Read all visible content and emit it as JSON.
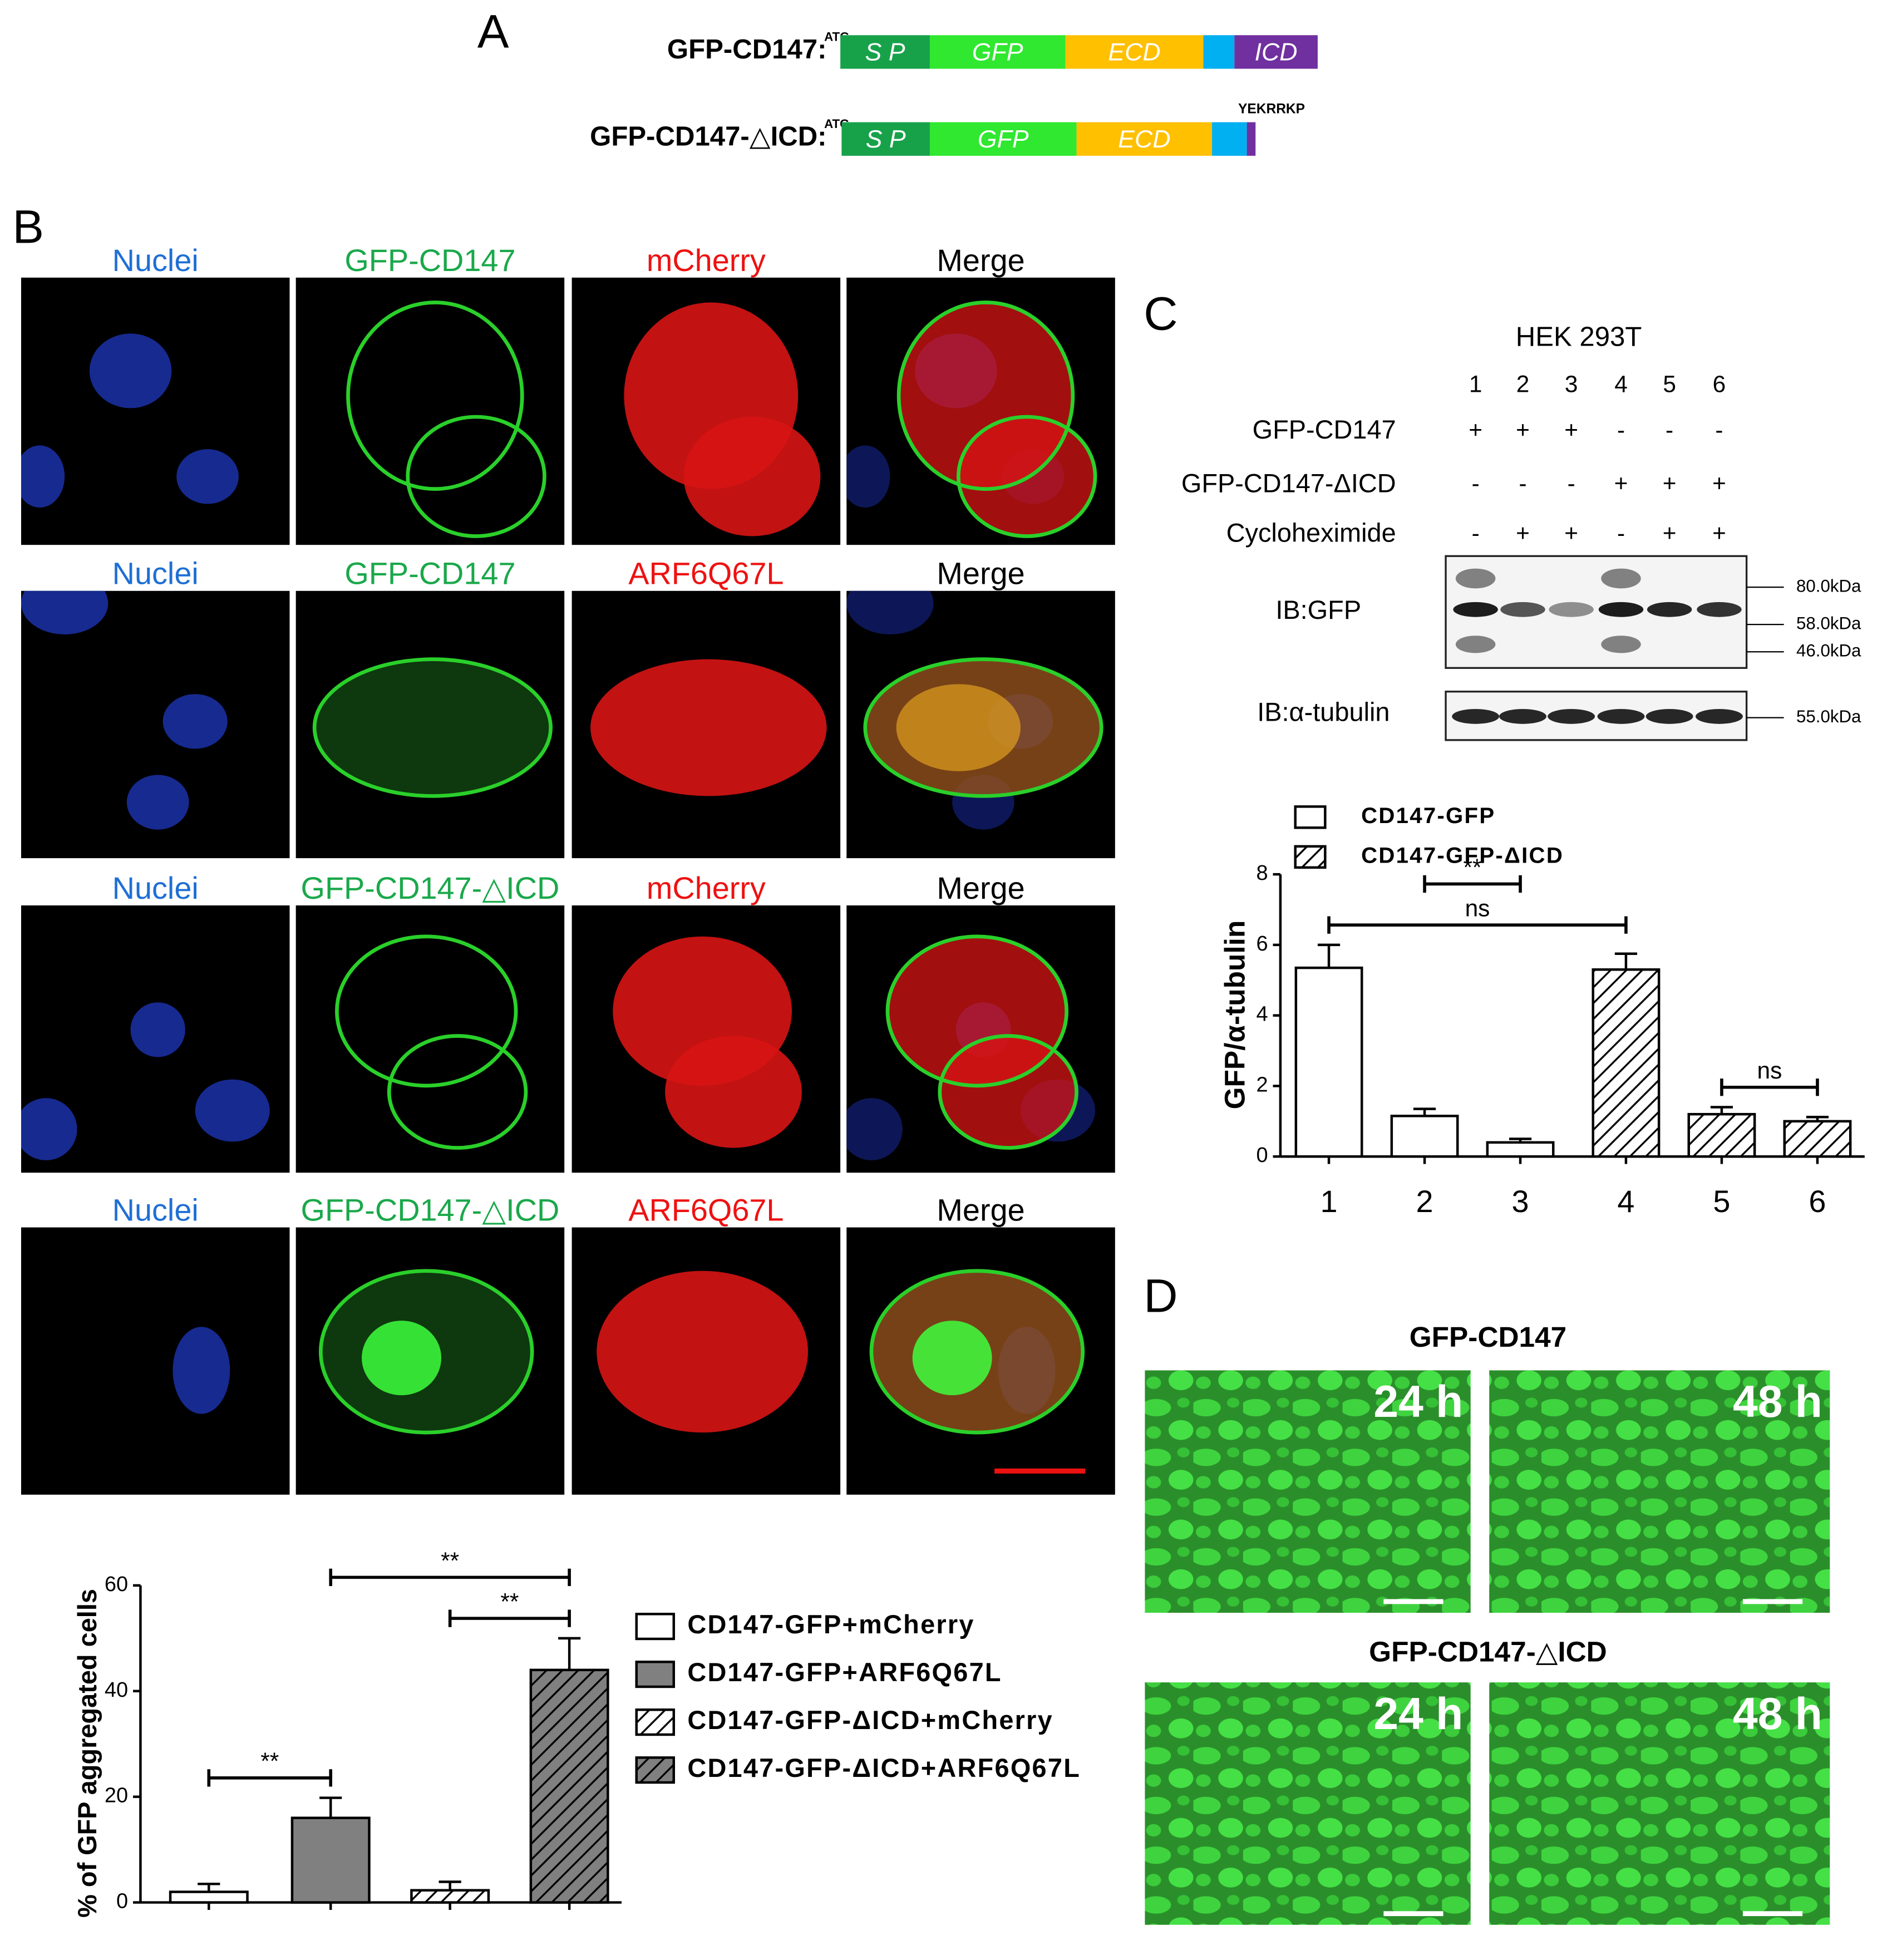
{
  "panel_labels": [
    "A",
    "B",
    "C",
    "D"
  ],
  "constructs": [
    {
      "name": "GFP-CD147:",
      "start": "ATG",
      "domains": [
        "S P",
        "GFP",
        "ECD",
        "ICD"
      ]
    },
    {
      "name": "GFP-CD147-△ICD:",
      "start": "ATG",
      "domains": [
        "S P",
        "GFP",
        "ECD"
      ],
      "tail": "YEKRRKP"
    }
  ],
  "microscopy": {
    "rows": [
      [
        "Nuclei",
        "GFP-CD147",
        "mCherry",
        "Merge"
      ],
      [
        "Nuclei",
        "GFP-CD147",
        "ARF6Q67L",
        "Merge"
      ],
      [
        "Nuclei",
        "GFP-CD147-△ICD",
        "mCherry",
        "Merge"
      ],
      [
        "Nuclei",
        "GFP-CD147-△ICD",
        "ARF6Q67L",
        "Merge"
      ]
    ]
  },
  "blot": {
    "cell_line": "HEK 293T",
    "lanes": [
      "1",
      "2",
      "3",
      "4",
      "5",
      "6"
    ],
    "conditions": [
      {
        "name": "GFP-CD147",
        "signs": [
          "+",
          "+",
          "+",
          "-",
          "-",
          "-"
        ]
      },
      {
        "name": "GFP-CD147-ΔICD",
        "signs": [
          "-",
          "-",
          "-",
          "+",
          "+",
          "+"
        ]
      },
      {
        "name": "Cycloheximide",
        "signs": [
          "-",
          "+",
          "+",
          "-",
          "+",
          "+"
        ]
      }
    ],
    "panels": [
      {
        "label": "IB:GFP",
        "markers": [
          "80.0kDa",
          "58.0kDa",
          "46.0kDa"
        ]
      },
      {
        "label": "IB:α-tubulin",
        "markers": [
          "55.0kDa"
        ]
      }
    ]
  },
  "chart_data": [
    {
      "type": "bar",
      "ylabel": "GFP/α-tubulin",
      "categories": [
        "1",
        "2",
        "3",
        "4",
        "5",
        "6"
      ],
      "series": [
        {
          "name": "CD147-GFP",
          "color": "#ffffff",
          "pattern": "none",
          "values": [
            5.35,
            1.15,
            0.4,
            null,
            null,
            null
          ],
          "errors": [
            0.65,
            0.2,
            0.1,
            null,
            null,
            null
          ]
        },
        {
          "name": "CD147-GFP-ΔICD",
          "color": "#ffffff",
          "pattern": "hatch",
          "values": [
            null,
            null,
            null,
            5.3,
            1.2,
            1.0
          ],
          "errors": [
            null,
            null,
            null,
            0.45,
            0.2,
            0.12
          ]
        }
      ],
      "ylim": [
        0,
        8
      ],
      "yticks": [
        0,
        2,
        4,
        6,
        8
      ],
      "annotations": [
        {
          "label": "ns",
          "between": [
            "1",
            "4"
          ]
        },
        {
          "label": "**",
          "between": [
            "2",
            "3"
          ]
        },
        {
          "label": "ns",
          "between": [
            "5",
            "6"
          ]
        }
      ],
      "legend": "top-left"
    },
    {
      "type": "bar",
      "ylabel": "% of GFP aggregated cells",
      "categories": [
        null,
        null,
        null,
        null
      ],
      "series": [
        {
          "name": "CD147-GFP+mCherry",
          "color": "#ffffff",
          "pattern": "none",
          "values": [
            2.0,
            null,
            null,
            null
          ],
          "errors": [
            1.5,
            null,
            null,
            null
          ]
        },
        {
          "name": "CD147-GFP+ARF6Q67L",
          "color": "#808080",
          "pattern": "none",
          "values": [
            null,
            16,
            null,
            null
          ],
          "errors": [
            null,
            3.8,
            null,
            null
          ]
        },
        {
          "name": "CD147-GFP-ΔICD+mCherry",
          "color": "#ffffff",
          "pattern": "hatch",
          "values": [
            null,
            null,
            2.3,
            null
          ],
          "errors": [
            null,
            null,
            1.6,
            null
          ]
        },
        {
          "name": "CD147-GFP-ΔICD+ARF6Q67L",
          "color": "#808080",
          "pattern": "hatch",
          "values": [
            null,
            null,
            null,
            44
          ],
          "errors": [
            null,
            null,
            null,
            6
          ]
        }
      ],
      "ylim": [
        0,
        60
      ],
      "yticks": [
        0,
        20,
        40,
        60
      ],
      "annotations": [
        {
          "label": "**",
          "between": [
            0,
            1
          ]
        },
        {
          "label": "**",
          "between": [
            2,
            3
          ]
        },
        {
          "label": "**",
          "between": [
            1,
            3
          ]
        }
      ],
      "legend": "right"
    }
  ],
  "panel_d": {
    "rows": [
      {
        "title": "GFP-CD147",
        "times": [
          "24 h",
          "48 h"
        ]
      },
      {
        "title": "GFP-CD147-△ICD",
        "times": [
          "24 h",
          "48 h"
        ]
      }
    ]
  }
}
